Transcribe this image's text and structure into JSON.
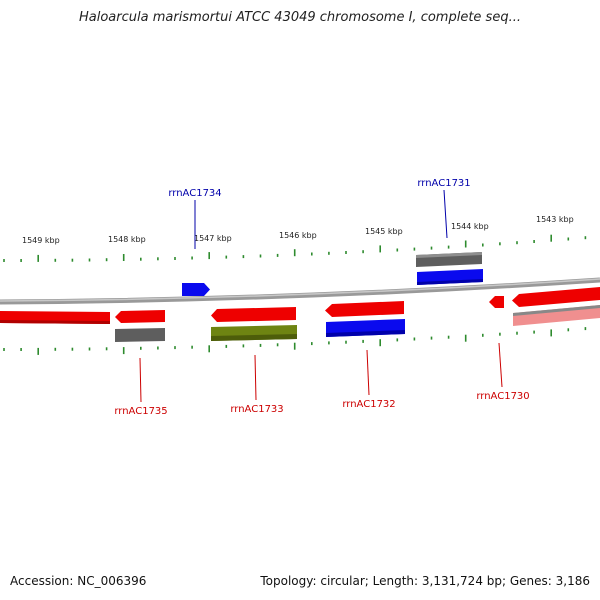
{
  "title": "Haloarcula marismortui ATCC 43049 chromosome I, complete seq...",
  "footer": {
    "accession": "Accession: NC_006396",
    "summary": "Topology: circular; Length: 3,131,724 bp; Genes: 3,186"
  },
  "colors": {
    "backbone": "#8a8a8a",
    "tick": "#2e8b2e",
    "red": "#ee0000",
    "blue": "#0000ee",
    "gray": "#606060",
    "olive": "#6b7f10",
    "pink": "#f08a8a",
    "label_blue": "#0000aa",
    "label_red": "#cc0000"
  },
  "kbp_ticks": [
    "1549 kbp",
    "1548 kbp",
    "1547 kbp",
    "1546 kbp",
    "1545 kbp",
    "1544 kbp",
    "1543 kbp"
  ],
  "rrna_labels": [
    "rrnAC1734",
    "rrnAC1731",
    "rrnAC1735",
    "rrnAC1733",
    "rrnAC1732",
    "rrnAC1730"
  ]
}
